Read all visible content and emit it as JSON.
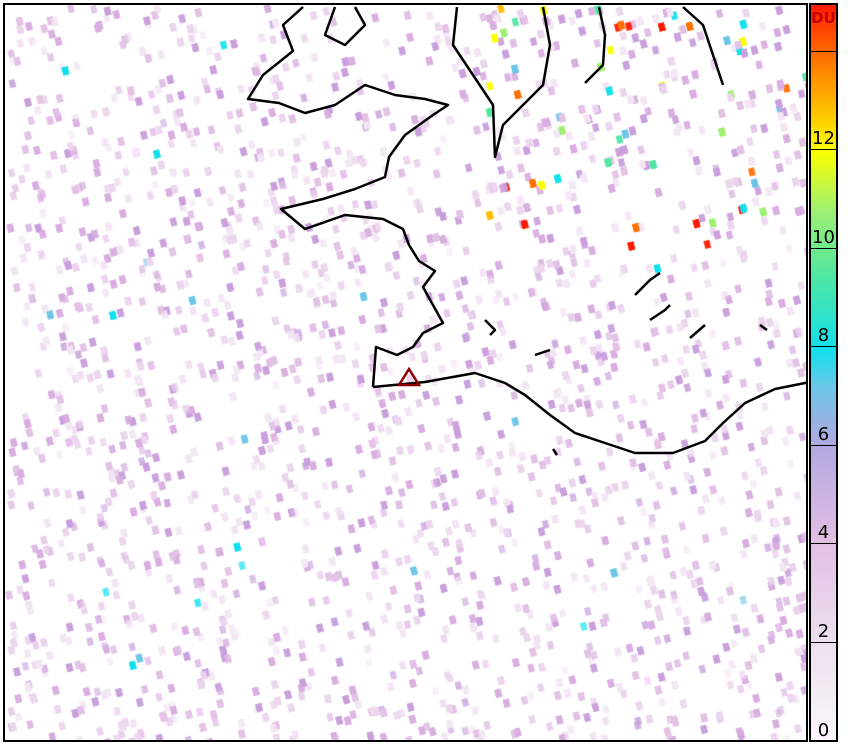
{
  "colorbar": {
    "unit": "DU",
    "ticks": [
      "0",
      "2",
      "4",
      "6",
      "8",
      "10",
      "12"
    ],
    "range": [
      0,
      15
    ],
    "colors": [
      "#fbf6fb",
      "#e2bfe4",
      "#b3a8e0",
      "#12e0ec",
      "#4fe7a3",
      "#fbff00",
      "#ff7000",
      "#ff1a00"
    ]
  },
  "map": {
    "marker": {
      "type": "triangle",
      "color": "#8b0000"
    },
    "coastline_color": "#000000"
  }
}
